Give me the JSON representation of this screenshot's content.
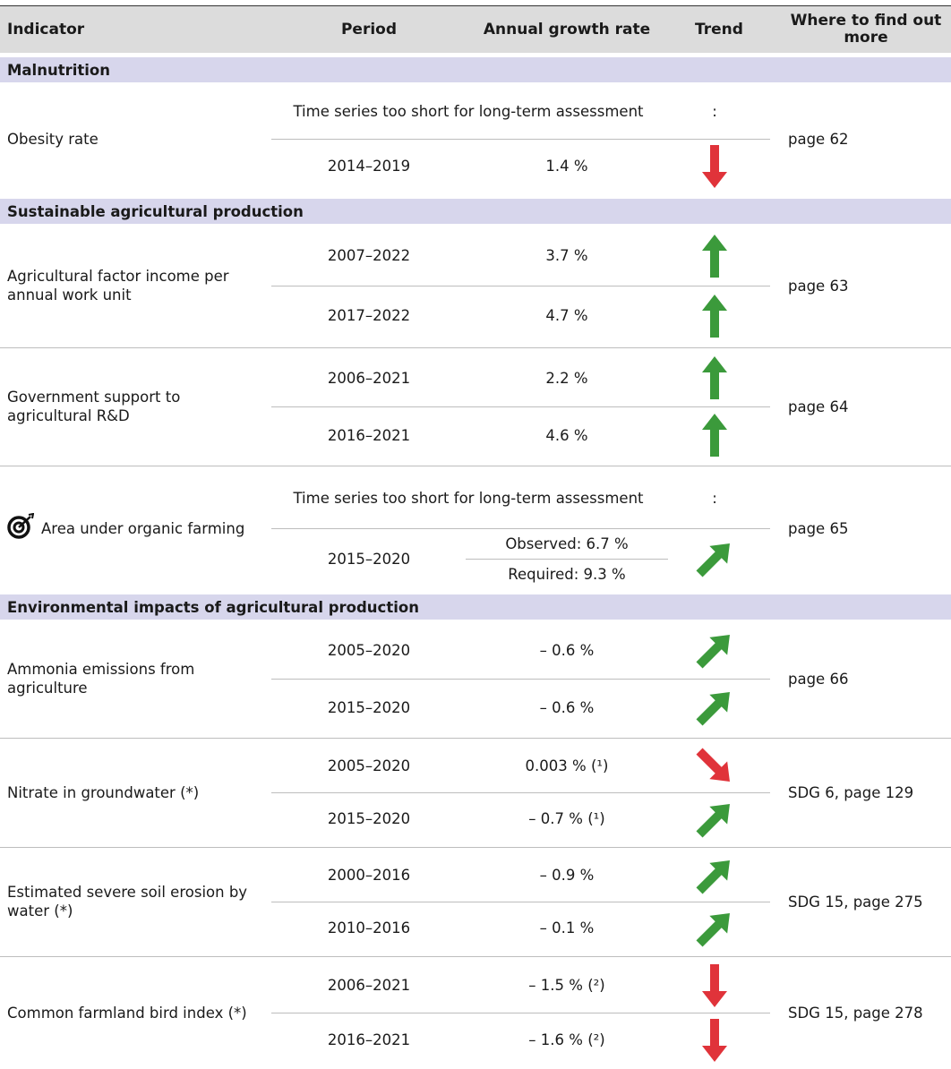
{
  "header": [
    "Indicator",
    "Period",
    "Annual growth rate",
    "Trend",
    "Where to find out more"
  ],
  "sections": [
    {
      "title": "Malnutrition",
      "rows": [
        {
          "indicator": "Obesity rate",
          "more": "page 62",
          "periods": [
            {
              "span": "Time series too short for long-term assessment",
              "trend": ":"
            },
            {
              "period": "2014–2019",
              "growth": "1.4 %"
            }
          ]
        }
      ]
    },
    {
      "title": "Sustainable agricultural production",
      "rows": [
        {
          "indicator": "Agricultural factor income per annual work unit",
          "more": "page 63",
          "periods": [
            {
              "period": "2007–2022",
              "growth": "3.7 %"
            },
            {
              "period": "2017–2022",
              "growth": "4.7 %"
            }
          ]
        },
        {
          "indicator": "Government support to agricultural R&D",
          "more": "page 64",
          "periods": [
            {
              "period": "2006–2021",
              "growth": "2.2 %"
            },
            {
              "period": "2016–2021",
              "growth": "4.6 %"
            }
          ]
        },
        {
          "indicator": "Area under organic farming",
          "more": "page 65",
          "periods": [
            {
              "span": "Time series too short for long-term assessment",
              "trend": ":"
            },
            {
              "period": "2015–2020",
              "growth": [
                "Observed: 6.7 %",
                "Required: 9.3 %"
              ]
            }
          ]
        }
      ]
    },
    {
      "title": "Environmental impacts of agricultural production",
      "rows": [
        {
          "indicator": "Ammonia emissions from agriculture",
          "more": "page 66",
          "periods": [
            {
              "period": "2005–2020",
              "growth": "– 0.6 %"
            },
            {
              "period": "2015–2020",
              "growth": "– 0.6 %"
            }
          ]
        },
        {
          "indicator": "Nitrate in groundwater (*)",
          "more": "SDG 6, page 129",
          "periods": [
            {
              "period": "2005–2020",
              "growth": "0.003 % (¹)"
            },
            {
              "period": "2015–2020",
              "growth": "– 0.7 % (¹)"
            }
          ]
        },
        {
          "indicator": "Estimated severe soil erosion by water (*)",
          "more": "SDG 15, page 275",
          "periods": [
            {
              "period": "2000–2016",
              "growth": "– 0.9 %"
            },
            {
              "period": "2010–2016",
              "growth": "– 0.1 %"
            }
          ]
        },
        {
          "indicator": "Common farmland bird index (*)",
          "more": "SDG 15, page 278",
          "periods": [
            {
              "period": "2006–2021",
              "growth": "– 1.5 % (²)"
            },
            {
              "period": "2016–2021",
              "growth": "– 1.6 % (²)"
            }
          ]
        }
      ]
    }
  ]
}
